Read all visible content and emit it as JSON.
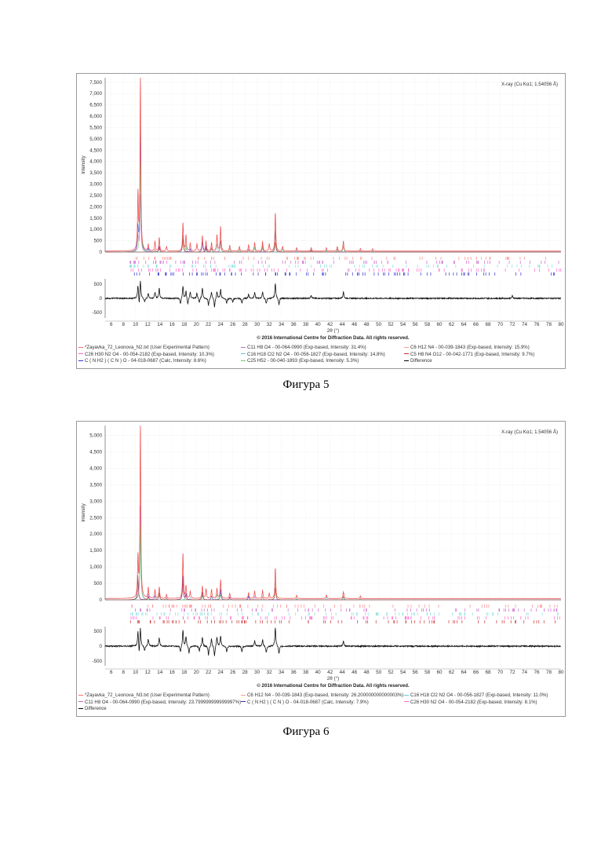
{
  "figures": [
    {
      "caption": "Фигура 5",
      "source_label": "X-ray (Cu Kα1; 1.54056 Å)",
      "copyright": "© 2016 International Centre for Diffraction Data. All rights reserved.",
      "legend": [
        {
          "label": "*Zayavka_72_Leonova_N2.txt (User Experimental Pattern)",
          "color": "#ff6b6b"
        },
        {
          "label": "C11 H8 O4 - 00-064-0990 (Exp-based, Intensity: 31.4%)",
          "color": "#cc66cc"
        },
        {
          "label": "C6 H12 N4 - 00-039-1843 (Exp-based, Intensity: 15.9%)",
          "color": "#ff9999"
        },
        {
          "label": "C26 H30 N2 O4 - 00-054-2182 (Exp-based, Intensity: 10.3%)",
          "color": "#ff66cc"
        },
        {
          "label": "C16 H18 Cl2 N2 O4 - 00-056-1827 (Exp-based, Intensity: 14.8%)",
          "color": "#66cccc"
        },
        {
          "label": "C5 H8 N4 O12 - 00-042-1771 (Exp-based, Intensity: 9.7%)",
          "color": "#cc3333"
        },
        {
          "label": "C ( N H2 ) ( C N ) O - 04-018-0687 (Calc, Intensity: 8.6%)",
          "color": "#3333cc"
        },
        {
          "label": "C25 H52 - 00-040-1893 (Exp-based, Intensity: 5.3%)",
          "color": "#66cc66"
        },
        {
          "label": "Difference",
          "color": "#000000"
        }
      ],
      "chart_data": {
        "type": "line",
        "xlabel": "2θ (°)",
        "ylabel": "Intensity",
        "xlim": [
          5,
          80
        ],
        "ylim": [
          0,
          7700
        ],
        "x_ticks": [
          6,
          8,
          10,
          12,
          14,
          16,
          18,
          20,
          22,
          24,
          26,
          28,
          30,
          32,
          34,
          36,
          38,
          40,
          42,
          44,
          46,
          48,
          50,
          52,
          54,
          56,
          58,
          60,
          62,
          64,
          66,
          68,
          70,
          72,
          74,
          76,
          78,
          80
        ],
        "y_ticks": [
          "0",
          "500",
          "1,000",
          "1,500",
          "2,000",
          "2,500",
          "3,000",
          "3,500",
          "4,000",
          "4,500",
          "5,000",
          "5,500",
          "6,000",
          "6,500",
          "7,000",
          "7,500"
        ],
        "y_tick_values": [
          0,
          500,
          1000,
          1500,
          2000,
          2500,
          3000,
          3500,
          4000,
          4500,
          5000,
          5500,
          6000,
          6500,
          7000,
          7500
        ],
        "peaks": [
          [
            10.4,
            2450
          ],
          [
            10.8,
            7700
          ],
          [
            12.1,
            280
          ],
          [
            13.2,
            420
          ],
          [
            13.9,
            600
          ],
          [
            15.1,
            200
          ],
          [
            17.8,
            1250
          ],
          [
            18.3,
            700
          ],
          [
            19.0,
            350
          ],
          [
            20.1,
            320
          ],
          [
            21.0,
            680
          ],
          [
            21.6,
            450
          ],
          [
            22.5,
            380
          ],
          [
            23.4,
            720
          ],
          [
            24.0,
            1100
          ],
          [
            25.5,
            250
          ],
          [
            27.1,
            200
          ],
          [
            28.6,
            280
          ],
          [
            29.6,
            380
          ],
          [
            30.9,
            420
          ],
          [
            32.0,
            320
          ],
          [
            33.0,
            1700
          ],
          [
            34.2,
            200
          ],
          [
            36.5,
            150
          ],
          [
            38.9,
            150
          ],
          [
            41.4,
            150
          ],
          [
            43.2,
            200
          ],
          [
            44.2,
            450
          ],
          [
            47.0,
            120
          ],
          [
            49.0,
            110
          ]
        ],
        "sticks": [
          {
            "color": "#ff8888"
          },
          {
            "color": "#cc66cc"
          },
          {
            "color": "#88dddd"
          },
          {
            "color": "#ff66cc"
          },
          {
            "color": "#3333cc"
          }
        ],
        "difference": {
          "y_ticks": [
            "500",
            "0",
            "-500"
          ],
          "y_tick_values": [
            500,
            0,
            -500
          ],
          "ylim": [
            -700,
            700
          ],
          "peaks": [
            [
              10.4,
              480
            ],
            [
              10.8,
              650
            ],
            [
              12.1,
              170
            ],
            [
              13.2,
              220
            ],
            [
              13.9,
              360
            ],
            [
              17.8,
              430
            ],
            [
              18.3,
              270
            ],
            [
              19.0,
              220
            ],
            [
              20.1,
              180
            ],
            [
              21.0,
              380
            ],
            [
              22.5,
              230
            ],
            [
              23.4,
              250
            ],
            [
              24.0,
              320
            ],
            [
              28.6,
              150
            ],
            [
              29.6,
              200
            ],
            [
              30.9,
              230
            ],
            [
              33.0,
              550
            ],
            [
              38.9,
              120
            ],
            [
              44.2,
              230
            ],
            [
              72.0,
              90
            ]
          ],
          "dips": [
            [
              10.6,
              -320
            ],
            [
              11.5,
              -150
            ],
            [
              17.4,
              -200
            ],
            [
              18.6,
              -220
            ],
            [
              20.5,
              -180
            ],
            [
              22.0,
              -260
            ],
            [
              23.0,
              -320
            ],
            [
              25.0,
              -180
            ],
            [
              26.0,
              -150
            ],
            [
              27.5,
              -170
            ],
            [
              31.5,
              -200
            ],
            [
              33.6,
              -230
            ]
          ]
        }
      }
    },
    {
      "caption": "Фигура 6",
      "source_label": "X-ray (Cu Kα1; 1.54056 Å)",
      "copyright": "© 2016 International Centre for Diffraction Data. All rights reserved.",
      "legend": [
        {
          "label": "*Zayavka_72_Leonova_N3.txt (User Experimental Pattern)",
          "color": "#ff6b6b"
        },
        {
          "label": "C6 H12 N4 - 00-039-1843 (Exp-based, Intensity: 26.200000000000003%)",
          "color": "#ff9999"
        },
        {
          "label": "C16 H18 Cl2 N2 O4 - 00-056-1827 (Exp-based, Intensity: 11.0%)",
          "color": "#66cccc"
        },
        {
          "label": "C11 H8 O4 - 00-064-0990 (Exp-based, Intensity: 23.799999999999997%)",
          "color": "#cc66cc"
        },
        {
          "label": "C ( N H2 ) ( C N ) O - 04-018-0687 (Calc, Intensity: 7.9%)",
          "color": "#3333cc"
        },
        {
          "label": "C26 H30 N2 O4 - 00-054-2182 (Exp-based, Intensity: 8.1%)",
          "color": "#ff66cc"
        },
        {
          "label": "Difference",
          "color": "#000000"
        }
      ],
      "chart_data": {
        "type": "line",
        "xlabel": "2θ (°)",
        "ylabel": "Intensity",
        "xlim": [
          5,
          80
        ],
        "ylim": [
          0,
          5300
        ],
        "x_ticks": [
          6,
          8,
          10,
          12,
          14,
          16,
          18,
          20,
          22,
          24,
          26,
          28,
          30,
          32,
          34,
          36,
          38,
          40,
          42,
          44,
          46,
          48,
          50,
          52,
          54,
          56,
          58,
          60,
          62,
          64,
          66,
          68,
          70,
          72,
          74,
          76,
          78,
          80
        ],
        "y_ticks": [
          "0",
          "500",
          "1,000",
          "1,500",
          "2,000",
          "2,500",
          "3,000",
          "3,500",
          "4,000",
          "4,500",
          "5,000"
        ],
        "y_tick_values": [
          0,
          500,
          1000,
          1500,
          2000,
          2500,
          3000,
          3500,
          4000,
          4500,
          5000
        ],
        "peaks": [
          [
            10.4,
            1200
          ],
          [
            10.8,
            5300
          ],
          [
            12.1,
            320
          ],
          [
            13.2,
            260
          ],
          [
            13.9,
            350
          ],
          [
            15.1,
            120
          ],
          [
            17.8,
            1380
          ],
          [
            18.3,
            380
          ],
          [
            19.0,
            220
          ],
          [
            21.0,
            380
          ],
          [
            21.6,
            300
          ],
          [
            22.5,
            280
          ],
          [
            23.4,
            300
          ],
          [
            24.0,
            580
          ],
          [
            25.5,
            160
          ],
          [
            28.6,
            180
          ],
          [
            29.6,
            230
          ],
          [
            30.9,
            250
          ],
          [
            32.0,
            160
          ],
          [
            33.0,
            930
          ],
          [
            36.5,
            100
          ],
          [
            41.4,
            110
          ],
          [
            44.2,
            210
          ],
          [
            47.0,
            80
          ]
        ],
        "sticks": [
          {
            "color": "#ff8888"
          },
          {
            "color": "#cc66cc"
          },
          {
            "color": "#88dddd"
          },
          {
            "color": "#ff66cc"
          },
          {
            "color": "#cc3333"
          }
        ],
        "difference": {
          "y_ticks": [
            "500",
            "0",
            "-500"
          ],
          "y_tick_values": [
            500,
            0,
            -500
          ],
          "ylim": [
            -650,
            650
          ],
          "peaks": [
            [
              10.4,
              520
            ],
            [
              10.8,
              620
            ],
            [
              12.1,
              230
            ],
            [
              13.9,
              280
            ],
            [
              17.8,
              520
            ],
            [
              18.3,
              330
            ],
            [
              21.0,
              300
            ],
            [
              22.5,
              260
            ],
            [
              23.4,
              310
            ],
            [
              24.0,
              340
            ],
            [
              29.6,
              180
            ],
            [
              30.9,
              220
            ],
            [
              33.0,
              620
            ],
            [
              44.2,
              170
            ]
          ],
          "dips": [
            [
              10.6,
              -350
            ],
            [
              11.5,
              -180
            ],
            [
              17.4,
              -220
            ],
            [
              18.8,
              -250
            ],
            [
              20.5,
              -180
            ],
            [
              22.0,
              -300
            ],
            [
              23.0,
              -340
            ],
            [
              25.0,
              -200
            ],
            [
              27.5,
              -170
            ],
            [
              31.5,
              -220
            ],
            [
              33.6,
              -250
            ]
          ]
        }
      }
    }
  ]
}
